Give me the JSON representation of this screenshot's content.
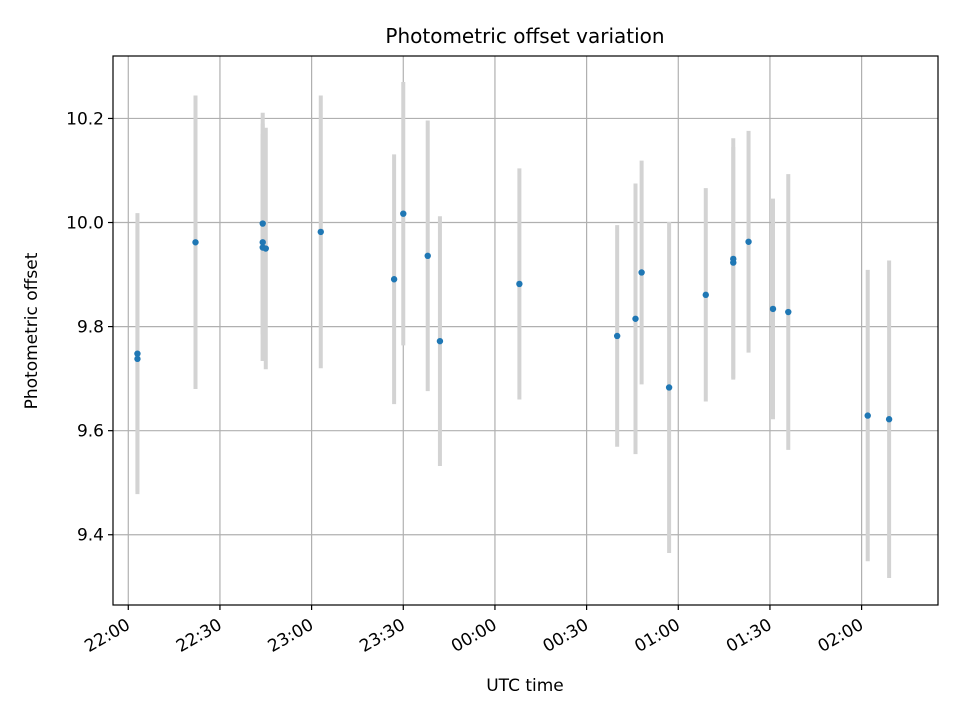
{
  "chart_data": {
    "type": "scatter",
    "title": "Photometric offset variation",
    "xlabel": "UTC time",
    "ylabel": "Photometric offset",
    "x_ticks": [
      "22:00",
      "22:30",
      "23:00",
      "23:30",
      "00:00",
      "00:30",
      "01:00",
      "01:30",
      "02:00"
    ],
    "y_ticks": [
      9.4,
      9.6,
      9.8,
      10.0,
      10.2
    ],
    "xlim": [
      "21:55",
      "02:25"
    ],
    "ylim": [
      9.265,
      10.32
    ],
    "grid": true,
    "colors": {
      "point": "#1f77b4",
      "errorbar": "#d3d3d3",
      "grid": "#b0b0b0"
    },
    "points": [
      {
        "t": "22:03",
        "y": 9.748,
        "err": 0.27
      },
      {
        "t": "22:03",
        "y": 9.738,
        "err": 0.255
      },
      {
        "t": "22:22",
        "y": 9.962,
        "err": 0.282
      },
      {
        "t": "22:44",
        "y": 9.998,
        "err": 0.213
      },
      {
        "t": "22:44",
        "y": 9.962,
        "err": 0.228
      },
      {
        "t": "22:44",
        "y": 9.952,
        "err": 0.218
      },
      {
        "t": "22:45",
        "y": 9.95,
        "err": 0.232
      },
      {
        "t": "23:03",
        "y": 9.982,
        "err": 0.262
      },
      {
        "t": "23:27",
        "y": 9.891,
        "err": 0.24
      },
      {
        "t": "23:30",
        "y": 10.017,
        "err": 0.253
      },
      {
        "t": "23:38",
        "y": 9.936,
        "err": 0.26
      },
      {
        "t": "23:42",
        "y": 9.772,
        "err": 0.24
      },
      {
        "t": "00:08",
        "y": 9.882,
        "err": 0.222
      },
      {
        "t": "00:40",
        "y": 9.782,
        "err": 0.213
      },
      {
        "t": "00:46",
        "y": 9.815,
        "err": 0.26
      },
      {
        "t": "00:48",
        "y": 9.904,
        "err": 0.215
      },
      {
        "t": "00:57",
        "y": 9.683,
        "err": 0.318
      },
      {
        "t": "01:09",
        "y": 9.861,
        "err": 0.205
      },
      {
        "t": "01:18",
        "y": 9.93,
        "err": 0.232
      },
      {
        "t": "01:18",
        "y": 9.923,
        "err": 0.222
      },
      {
        "t": "01:23",
        "y": 9.963,
        "err": 0.213
      },
      {
        "t": "01:31",
        "y": 9.834,
        "err": 0.212
      },
      {
        "t": "01:36",
        "y": 9.828,
        "err": 0.265
      },
      {
        "t": "02:02",
        "y": 9.629,
        "err": 0.28
      },
      {
        "t": "02:09",
        "y": 9.622,
        "err": 0.305
      }
    ]
  }
}
